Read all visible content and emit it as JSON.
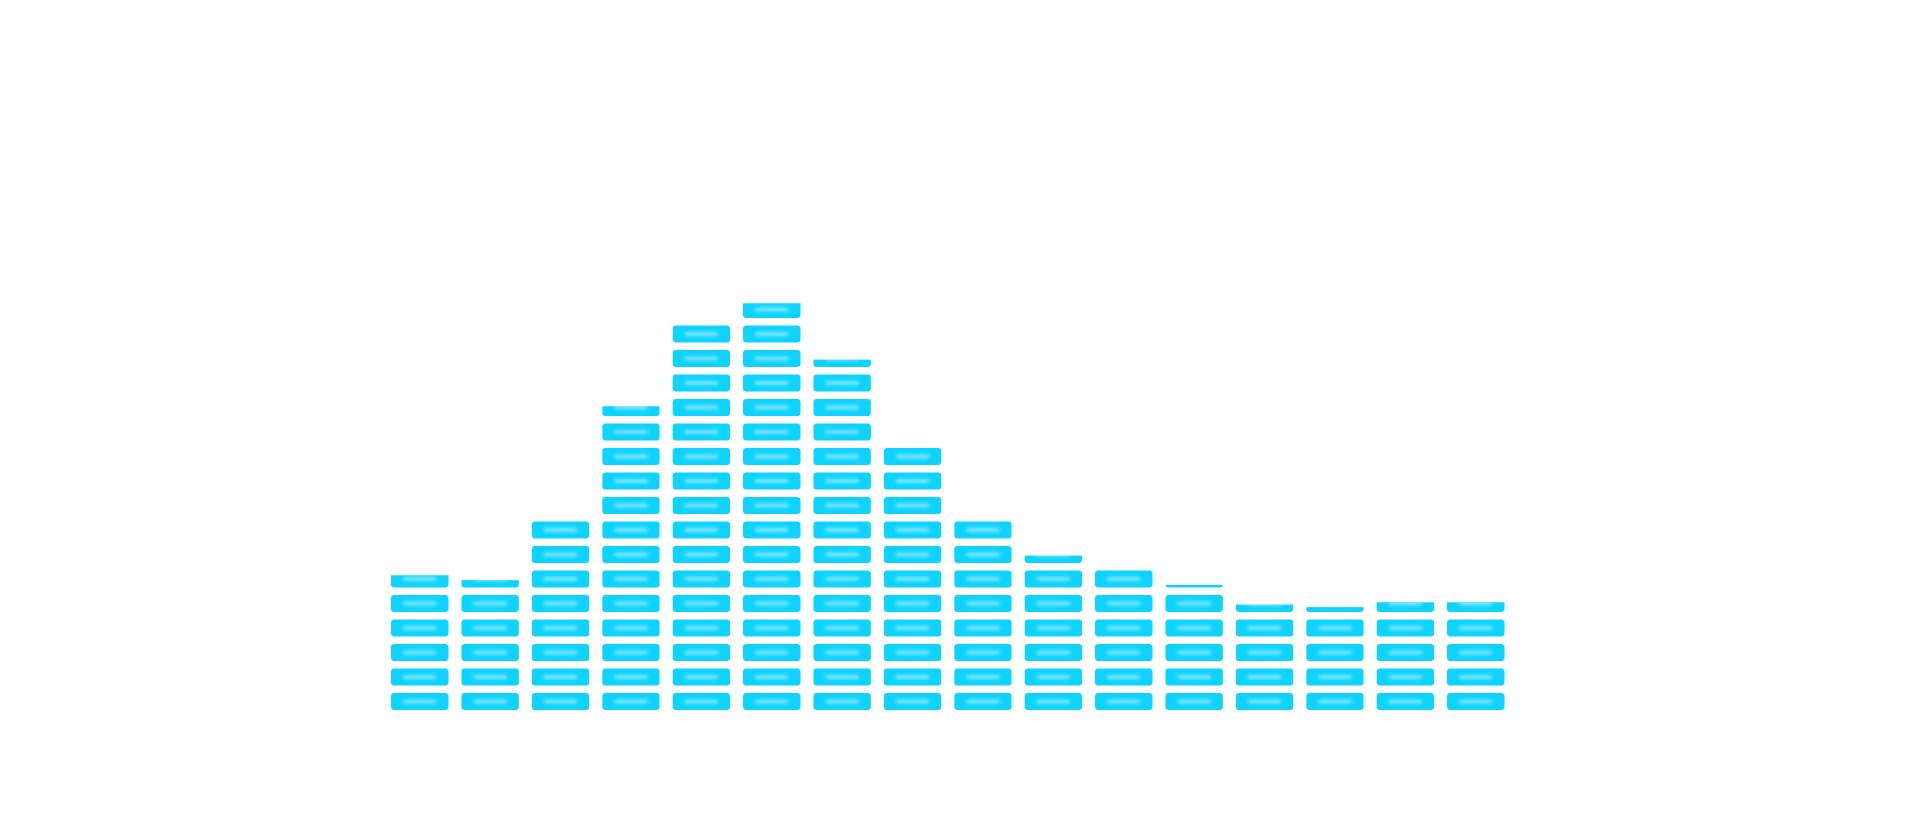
{
  "chart_data": {
    "type": "bar",
    "values": [
      5.5,
      5.3,
      7.7,
      12.4,
      15.7,
      16.6,
      14.3,
      10.7,
      7.7,
      6.3,
      5.7,
      5.1,
      4.3,
      4.2,
      4.4,
      4.4
    ],
    "color": "#0fd3ff"
  }
}
